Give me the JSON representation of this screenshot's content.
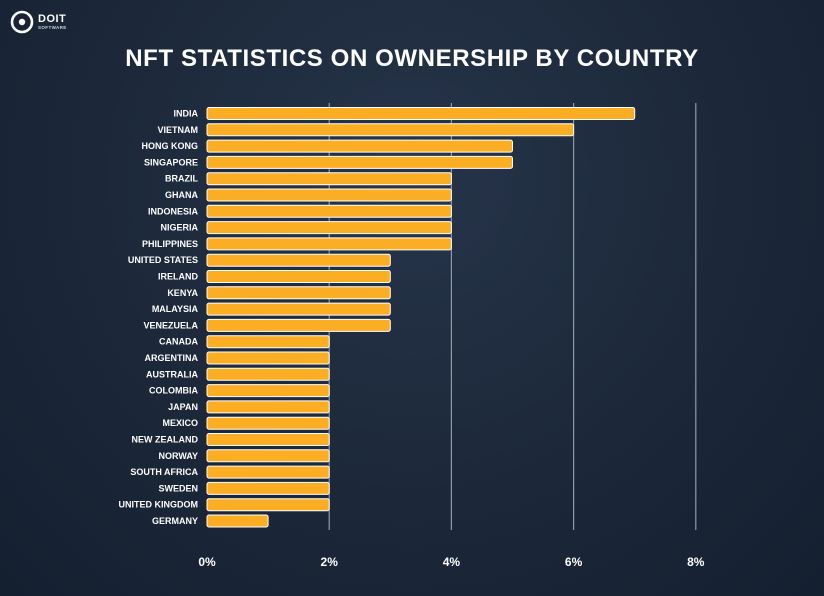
{
  "brand": {
    "name": "DOIT",
    "tagline": "SOFTWARE"
  },
  "colors": {
    "bar": "#fbae24",
    "bar_stroke": "#ffffff",
    "grid": "#8f9aa8",
    "text": "#ffffff"
  },
  "chart_data": {
    "type": "bar",
    "orientation": "horizontal",
    "title": "NFT STATISTICS ON OWNERSHIP BY COUNTRY",
    "xlabel": "",
    "ylabel": "",
    "xlim": [
      0,
      8
    ],
    "x_ticks": [
      0,
      2,
      4,
      6,
      8
    ],
    "x_tick_labels": [
      "0%",
      "2%",
      "4%",
      "6%",
      "8%"
    ],
    "grid": true,
    "legend": false,
    "categories": [
      "INDIA",
      "VIETNAM",
      "HONG KONG",
      "SINGAPORE",
      "BRAZIL",
      "GHANA",
      "INDONESIA",
      "NIGERIA",
      "PHILIPPINES",
      "UNITED STATES",
      "IRELAND",
      "KENYA",
      "MALAYSIA",
      "VENEZUELA",
      "CANADA",
      "ARGENTINA",
      "AUSTRALIA",
      "COLOMBIA",
      "JAPAN",
      "MEXICO",
      "NEW ZEALAND",
      "NORWAY",
      "SOUTH AFRICA",
      "SWEDEN",
      "UNITED KINGDOM",
      "GERMANY"
    ],
    "values": [
      7,
      6,
      5,
      5,
      4,
      4,
      4,
      4,
      4,
      3,
      3,
      3,
      3,
      3,
      2,
      2,
      2,
      2,
      2,
      2,
      2,
      2,
      2,
      2,
      2,
      1
    ]
  }
}
